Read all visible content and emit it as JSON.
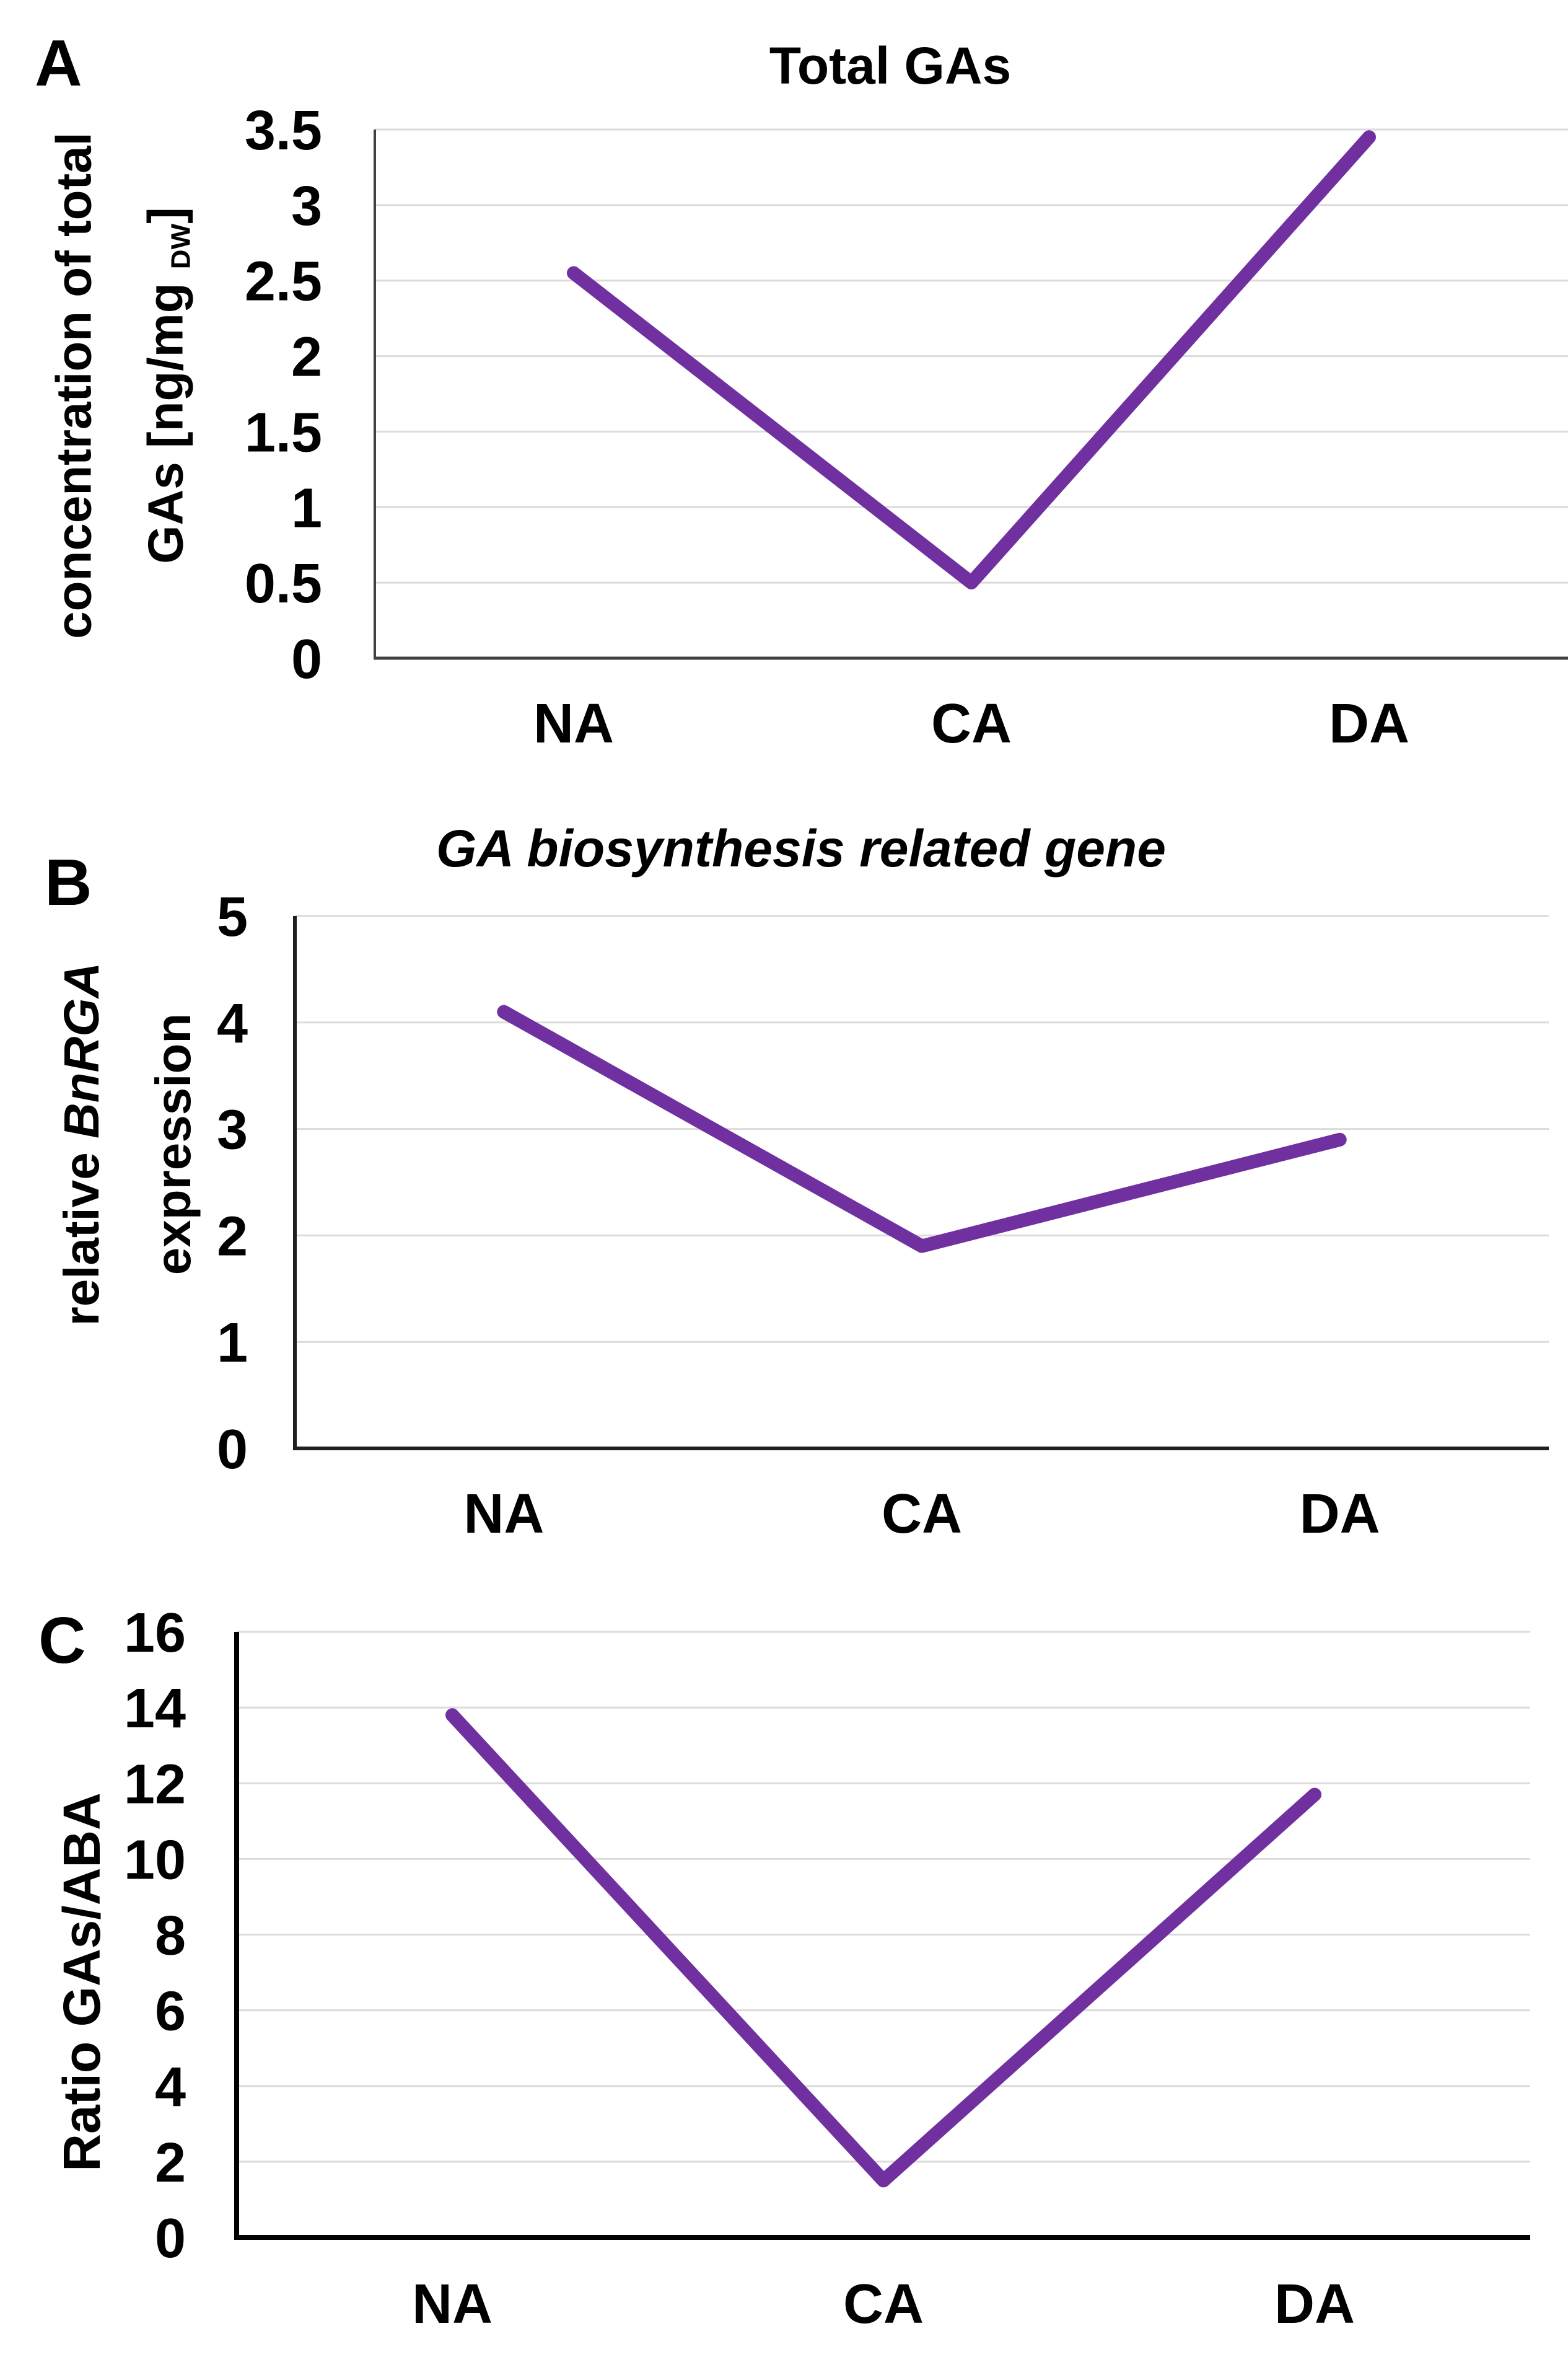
{
  "figure": {
    "background": "#ffffff",
    "accent_color": "#7030A0",
    "grid_color": "#DBDBDB",
    "axis_color_dark": "#000000",
    "text_color": "#000000"
  },
  "panels": [
    {
      "label": "A",
      "title": "Total GAs",
      "y_axis_title": {
        "lines": [
          [
            {
              "t": "concentration of total"
            }
          ],
          [
            {
              "t": "GAs [ng/mg "
            },
            {
              "t": "DW",
              "sub": true
            },
            {
              "t": "]"
            }
          ]
        ]
      }
    },
    {
      "label": "B",
      "title": "GA biosynthesis related gene",
      "y_axis_title": {
        "lines": [
          [
            {
              "t": "relative "
            },
            {
              "t": "BnRGA",
              "italic": true
            }
          ],
          [
            {
              "t": "expression"
            }
          ]
        ]
      }
    },
    {
      "label": "C",
      "title": "",
      "y_axis_title": {
        "lines": [
          [
            {
              "t": "Ratio GAs/ABA"
            }
          ]
        ]
      }
    }
  ],
  "chart_data": [
    {
      "type": "line",
      "panel": "A",
      "title": "Total GAs",
      "ylabel": "concentration of total GAs [ng/mg DW]",
      "categories": [
        "NA",
        "CA",
        "DA"
      ],
      "values": [
        2.55,
        0.5,
        3.45
      ],
      "ylim": [
        0,
        3.5
      ],
      "ytick_step": 0.5,
      "y_tick_labels": [
        "0",
        "0.5",
        "1",
        "1.5",
        "2",
        "2.5",
        "3",
        "3.5"
      ],
      "line_color": "#7030A0",
      "grid": "horizontal",
      "legend": "none"
    },
    {
      "type": "line",
      "panel": "B",
      "title": "GA biosynthesis related gene",
      "ylabel": "relative BnRGA expression",
      "categories": [
        "NA",
        "CA",
        "DA"
      ],
      "values": [
        4.1,
        1.9,
        2.9
      ],
      "ylim": [
        0,
        5
      ],
      "ytick_step": 1,
      "y_tick_labels": [
        "0",
        "1",
        "2",
        "3",
        "4",
        "5"
      ],
      "line_color": "#7030A0",
      "grid": "horizontal",
      "legend": "none"
    },
    {
      "type": "line",
      "panel": "C",
      "title": "",
      "ylabel": "Ratio GAs/ABA",
      "categories": [
        "NA",
        "CA",
        "DA"
      ],
      "values": [
        13.8,
        1.5,
        11.7
      ],
      "ylim": [
        0,
        16
      ],
      "ytick_step": 2,
      "y_tick_labels": [
        "0",
        "2",
        "4",
        "6",
        "8",
        "10",
        "12",
        "14",
        "16"
      ],
      "line_color": "#7030A0",
      "grid": "horizontal",
      "legend": "none"
    }
  ]
}
